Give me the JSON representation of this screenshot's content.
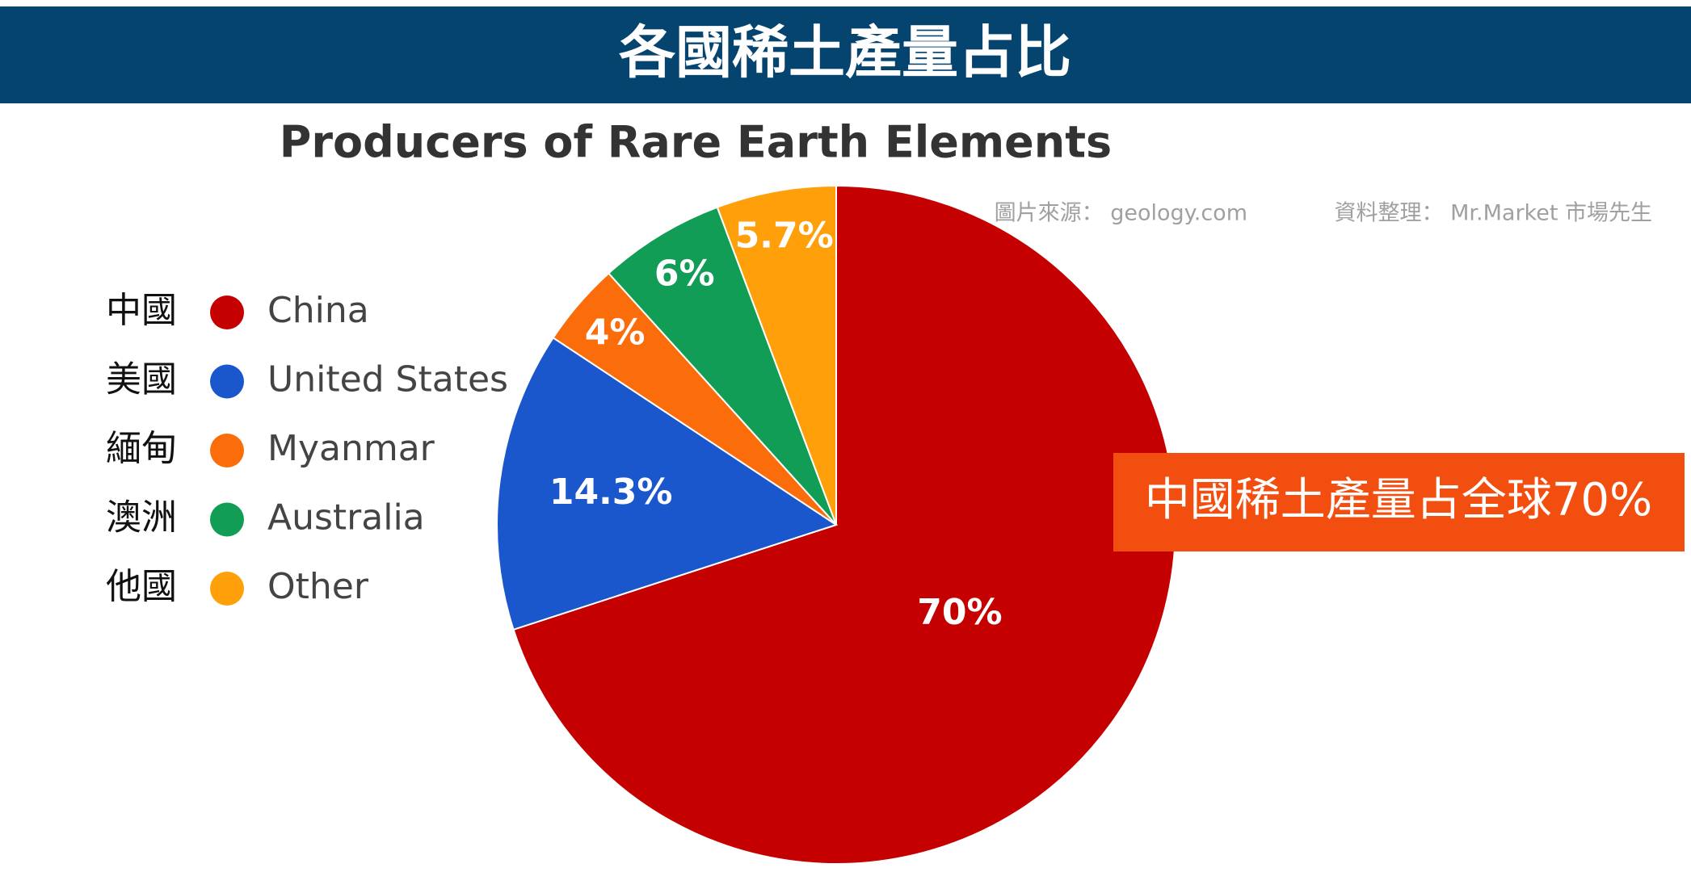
{
  "header": {
    "title": "各國稀土產量占比"
  },
  "chart_data": {
    "type": "pie",
    "title": "Producers of Rare Earth Elements",
    "categories": [
      "China",
      "United States",
      "Myanmar",
      "Australia",
      "Other"
    ],
    "category_labels_zh": [
      "中國",
      "美國",
      "緬甸",
      "澳洲",
      "他國"
    ],
    "values": [
      70,
      14.3,
      4,
      6,
      5.7
    ],
    "value_labels": [
      "70%",
      "14.3%",
      "4%",
      "6%",
      "5.7%"
    ],
    "colors": [
      "#c40000",
      "#1a56cc",
      "#fb6c0a",
      "#129d57",
      "#ffa00b"
    ],
    "start_angle": 0,
    "direction": "clockwise",
    "legend": "left",
    "source": "圖片來源： geology.com",
    "credit": "資料整理： Mr.Market 市場先生",
    "annotation": "中國稀土產量占全球70%"
  }
}
